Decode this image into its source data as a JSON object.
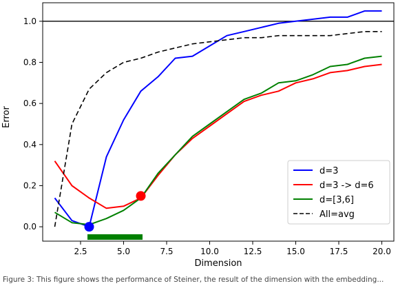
{
  "chart_data": {
    "type": "line",
    "title": "",
    "xlabel": "Dimension",
    "ylabel": "Error",
    "xlim": [
      0.3,
      20.7
    ],
    "ylim": [
      -0.07,
      1.09
    ],
    "xticks": [
      2.5,
      5.0,
      7.5,
      10.0,
      12.5,
      15.0,
      17.5,
      20.0
    ],
    "yticks": [
      0.0,
      0.2,
      0.4,
      0.6,
      0.8,
      1.0
    ],
    "xtick_labels": [
      "2.5",
      "5.0",
      "7.5",
      "10.0",
      "12.5",
      "15.0",
      "17.5",
      "20.0"
    ],
    "ytick_labels": [
      "0.0",
      "0.2",
      "0.4",
      "0.6",
      "0.8",
      "1.0"
    ],
    "grid": false,
    "legend_position": "lower-right",
    "hline": {
      "y": 1.0,
      "color": "#000000"
    },
    "series": [
      {
        "name": "d=3",
        "color": "#0000ff",
        "style": "solid",
        "x": [
          1,
          2,
          3,
          4,
          5,
          6,
          7,
          8,
          9,
          10,
          11,
          12,
          13,
          14,
          15,
          16,
          17,
          18,
          19,
          20
        ],
        "y": [
          0.14,
          0.03,
          0.0,
          0.34,
          0.52,
          0.66,
          0.73,
          0.82,
          0.83,
          0.88,
          0.93,
          0.95,
          0.97,
          0.99,
          1.0,
          1.01,
          1.02,
          1.02,
          1.05,
          1.05
        ],
        "marker": {
          "x": 3,
          "y": 0.0
        }
      },
      {
        "name": "d=3 -> d=6",
        "color": "#ff0000",
        "style": "solid",
        "x": [
          1,
          2,
          3,
          4,
          5,
          6,
          7,
          8,
          9,
          10,
          11,
          12,
          13,
          14,
          15,
          16,
          17,
          18,
          19,
          20
        ],
        "y": [
          0.32,
          0.2,
          0.14,
          0.09,
          0.1,
          0.14,
          0.25,
          0.35,
          0.43,
          0.49,
          0.55,
          0.61,
          0.64,
          0.66,
          0.7,
          0.72,
          0.75,
          0.76,
          0.78,
          0.79
        ],
        "marker": {
          "x": 6,
          "y": 0.15
        }
      },
      {
        "name": "d=[3,6]",
        "color": "#008000",
        "style": "solid",
        "x": [
          1,
          2,
          3,
          4,
          5,
          6,
          7,
          8,
          9,
          10,
          11,
          12,
          13,
          14,
          15,
          16,
          17,
          18,
          19,
          20
        ],
        "y": [
          0.07,
          0.02,
          0.01,
          0.04,
          0.08,
          0.14,
          0.26,
          0.35,
          0.44,
          0.5,
          0.56,
          0.62,
          0.65,
          0.7,
          0.71,
          0.74,
          0.78,
          0.79,
          0.82,
          0.83
        ]
      },
      {
        "name": "All=avg",
        "color": "#000000",
        "style": "dashed",
        "x": [
          1,
          2,
          3,
          4,
          5,
          6,
          7,
          8,
          9,
          10,
          11,
          12,
          13,
          14,
          15,
          16,
          17,
          18,
          19,
          20
        ],
        "y": [
          0.0,
          0.5,
          0.67,
          0.75,
          0.8,
          0.82,
          0.85,
          0.87,
          0.89,
          0.9,
          0.91,
          0.92,
          0.92,
          0.93,
          0.93,
          0.93,
          0.93,
          0.94,
          0.95,
          0.95
        ]
      }
    ],
    "range_bar": {
      "x_start": 2.9,
      "x_end": 6.1,
      "y": -0.05,
      "color": "#008000"
    }
  },
  "caption": "Figure 3: This figure shows the performance of Steiner, the result of the dimension with the embedding..."
}
